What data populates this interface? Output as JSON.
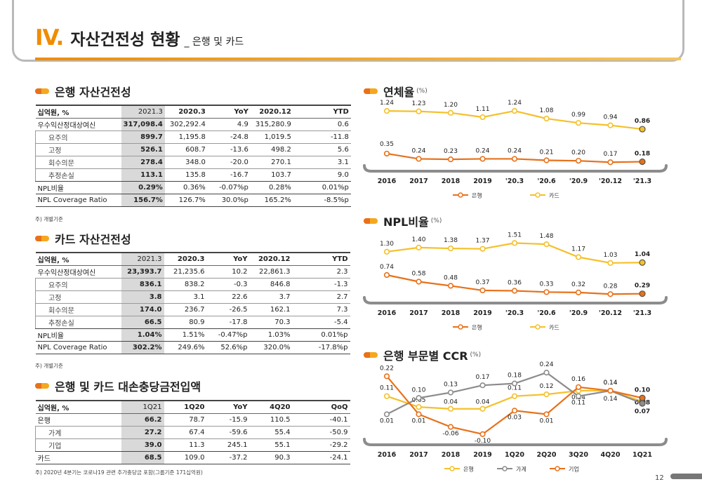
{
  "header": {
    "roman": "IV.",
    "title": "자산건전성 현황",
    "subtitle": "_ 은행 및 카드"
  },
  "bank_table": {
    "title": "은행 자산건전성",
    "footnote": "주) 개별기준",
    "columns": [
      "십억원, %",
      "2021.3",
      "2020.3",
      "YoY",
      "2020.12",
      "YTD"
    ],
    "rows": [
      {
        "label": "우수익산정대상여신",
        "sub": false,
        "values": [
          "317,098.4",
          "302,292.4",
          "4.9",
          "315,280.9",
          "0.6"
        ]
      },
      {
        "label": "요주의",
        "sub": true,
        "values": [
          "899.7",
          "1,195.8",
          "-24.8",
          "1,019.5",
          "-11.8"
        ]
      },
      {
        "label": "고정",
        "sub": true,
        "values": [
          "526.1",
          "608.7",
          "-13.6",
          "498.2",
          "5.6"
        ]
      },
      {
        "label": "회수의문",
        "sub": true,
        "values": [
          "278.4",
          "348.0",
          "-20.0",
          "270.1",
          "3.1"
        ]
      },
      {
        "label": "추정손실",
        "sub": true,
        "values": [
          "113.1",
          "135.8",
          "-16.7",
          "103.7",
          "9.0"
        ]
      },
      {
        "label": "NPL비율",
        "sub": false,
        "values": [
          "0.29%",
          "0.36%",
          "-0.07%p",
          "0.28%",
          "0.01%p"
        ]
      },
      {
        "label": "NPL Coverage Ratio",
        "sub": false,
        "values": [
          "156.7%",
          "126.7%",
          "30.0%p",
          "165.2%",
          "-8.5%p"
        ]
      }
    ]
  },
  "card_table": {
    "title": "카드 자산건전성",
    "footnote": "주) 개별기준",
    "columns": [
      "십억원, %",
      "2021.3",
      "2020.3",
      "YoY",
      "2020.12",
      "YTD"
    ],
    "rows": [
      {
        "label": "우수익산정대상여신",
        "sub": false,
        "values": [
          "23,393.7",
          "21,235.6",
          "10.2",
          "22,861.3",
          "2.3"
        ]
      },
      {
        "label": "요주의",
        "sub": true,
        "values": [
          "836.1",
          "838.2",
          "-0.3",
          "846.8",
          "-1.3"
        ]
      },
      {
        "label": "고정",
        "sub": true,
        "values": [
          "3.8",
          "3.1",
          "22.6",
          "3.7",
          "2.7"
        ]
      },
      {
        "label": "회수의문",
        "sub": true,
        "values": [
          "174.0",
          "236.7",
          "-26.5",
          "162.1",
          "7.3"
        ]
      },
      {
        "label": "추정손실",
        "sub": true,
        "values": [
          "66.5",
          "80.9",
          "-17.8",
          "70.3",
          "-5.4"
        ]
      },
      {
        "label": "NPL비율",
        "sub": false,
        "values": [
          "1.04%",
          "1.51%",
          "-0.47%p",
          "1.03%",
          "0.01%p"
        ]
      },
      {
        "label": "NPL Coverage Ratio",
        "sub": false,
        "values": [
          "302.2%",
          "249.6%",
          "52.6%p",
          "320.0%",
          "-17.8%p"
        ]
      }
    ]
  },
  "provision_table": {
    "title": "은행 및 카드 대손충당금전입액",
    "footnote": "주) 2020년 4분기는 코로나19 관련 추가충당금 포함(그룹기준 171십억원)",
    "columns": [
      "십억원, %",
      "1Q21",
      "1Q20",
      "YoY",
      "4Q20",
      "QoQ"
    ],
    "rows": [
      {
        "label": "은행",
        "sub": false,
        "values": [
          "66.2",
          "78.7",
          "-15.9",
          "110.5",
          "-40.1"
        ]
      },
      {
        "label": "가계",
        "sub": true,
        "values": [
          "27.2",
          "67.4",
          "-59.6",
          "55.4",
          "-50.9"
        ]
      },
      {
        "label": "기업",
        "sub": true,
        "values": [
          "39.0",
          "11.3",
          "245.1",
          "55.1",
          "-29.2"
        ]
      },
      {
        "label": "카드",
        "sub": false,
        "values": [
          "68.5",
          "109.0",
          "-37.2",
          "90.3",
          "-24.1"
        ]
      }
    ]
  },
  "colors": {
    "bank": "#e8711a",
    "card": "#f5c02a",
    "household": "#8c8c8c",
    "corporate": "#e8711a",
    "ccr_bank": "#f5c02a",
    "axis": "#8c8c8c"
  },
  "chart_data": [
    {
      "type": "line",
      "title": "연체율",
      "unit": "(%)",
      "categories": [
        "2016",
        "2017",
        "2018",
        "2019",
        "'20.3",
        "'20.6",
        "'20.9",
        "'20.12",
        "'21.3"
      ],
      "series": [
        {
          "name": "은행",
          "values": [
            0.35,
            0.24,
            0.23,
            0.24,
            0.24,
            0.21,
            0.2,
            0.17,
            0.18
          ]
        },
        {
          "name": "카드",
          "values": [
            1.24,
            1.23,
            1.2,
            1.11,
            1.24,
            1.08,
            0.99,
            0.94,
            0.86
          ]
        }
      ],
      "legend": "bottom"
    },
    {
      "type": "line",
      "title": "NPL비율",
      "unit": "(%)",
      "categories": [
        "2016",
        "2017",
        "2018",
        "2019",
        "'20.3",
        "'20.6",
        "'20.9",
        "'20.12",
        "'21.3"
      ],
      "series": [
        {
          "name": "은행",
          "values": [
            0.74,
            0.58,
            0.48,
            0.37,
            0.36,
            0.33,
            0.32,
            0.28,
            0.29
          ]
        },
        {
          "name": "카드",
          "values": [
            1.3,
            1.4,
            1.38,
            1.37,
            1.51,
            1.48,
            1.17,
            1.03,
            1.04
          ]
        }
      ],
      "legend": "bottom"
    },
    {
      "type": "line",
      "title": "은행 부문별 CCR",
      "unit": "(%)",
      "categories": [
        "2016",
        "2017",
        "2018",
        "2019",
        "1Q20",
        "2Q20",
        "3Q20",
        "4Q20",
        "1Q21"
      ],
      "series": [
        {
          "name": "은행",
          "values": [
            0.11,
            0.05,
            0.04,
            0.04,
            0.11,
            0.12,
            0.14,
            0.14,
            0.08
          ]
        },
        {
          "name": "가계",
          "values": [
            0.01,
            0.1,
            0.13,
            0.17,
            0.18,
            0.24,
            0.11,
            0.14,
            0.07
          ]
        },
        {
          "name": "기업",
          "values": [
            0.22,
            0.01,
            -0.06,
            -0.1,
            0.03,
            0.01,
            0.16,
            0.14,
            0.1
          ]
        }
      ],
      "legend": "bottom"
    }
  ],
  "page_number": "12"
}
